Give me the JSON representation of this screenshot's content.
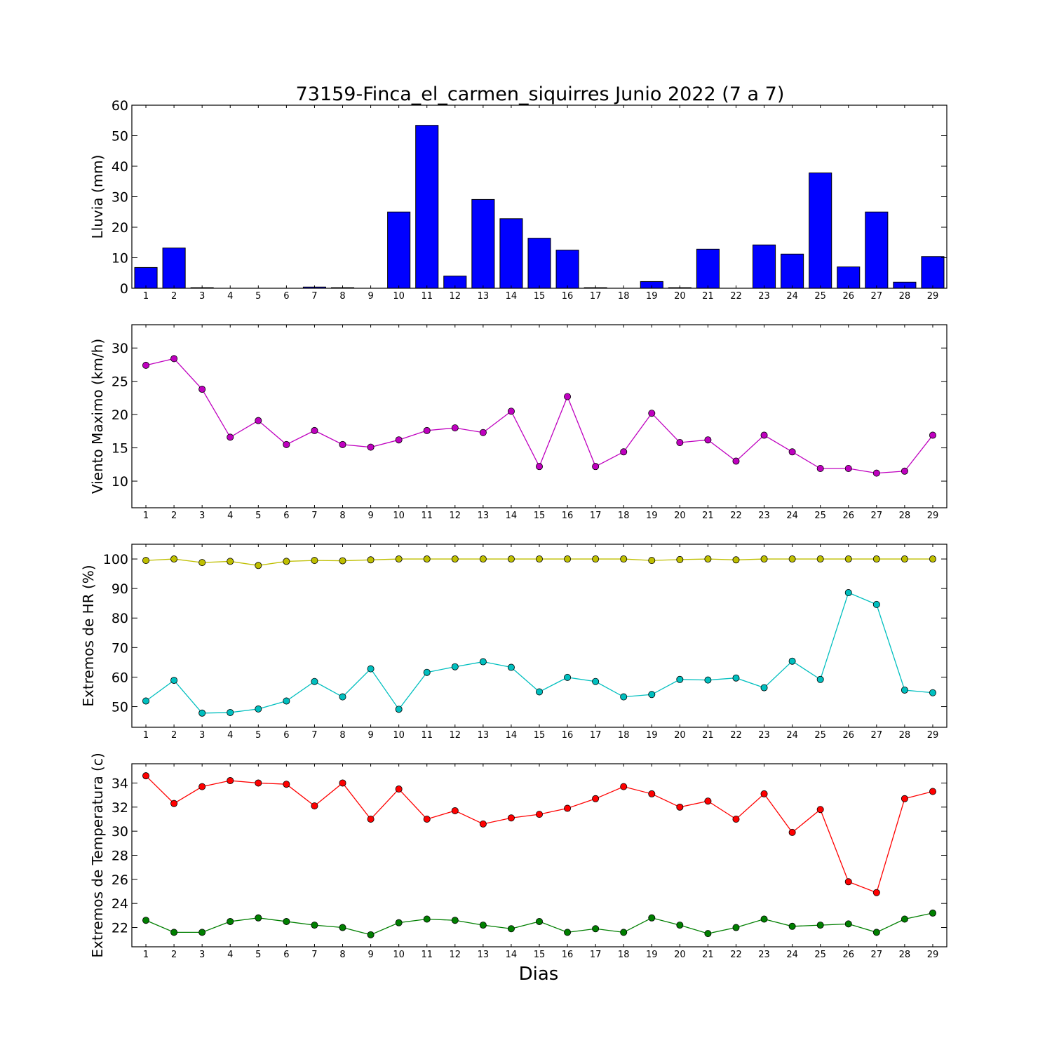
{
  "chart_data": {
    "type": "multi-panel",
    "title": "73159-Finca_el_carmen_siquirres Junio 2022  (7 a 7)",
    "xlabel": "Dias",
    "days": [
      1,
      2,
      3,
      4,
      5,
      6,
      7,
      8,
      9,
      10,
      11,
      12,
      13,
      14,
      15,
      16,
      17,
      18,
      19,
      20,
      21,
      22,
      23,
      24,
      25,
      26,
      27,
      28,
      29
    ],
    "panels": [
      {
        "type": "bar",
        "ylabel": "Lluvia (mm)",
        "ylim": [
          0,
          60
        ],
        "yticks": [
          0,
          10,
          20,
          30,
          40,
          50,
          60
        ],
        "series": [
          {
            "color": "#0000ff",
            "values": [
              6.8,
              13.2,
              0.2,
              0,
              0,
              0,
              0.4,
              0.2,
              0,
              25,
              53.4,
              4,
              29.1,
              22.8,
              16.4,
              12.5,
              0.2,
              0,
              2.2,
              0.2,
              12.8,
              0,
              14.2,
              11.2,
              37.8,
              7,
              25,
              2,
              10.4
            ]
          }
        ]
      },
      {
        "type": "line",
        "ylabel": "Viento Maximo (km/h)",
        "ylim": [
          6,
          33.5
        ],
        "yticks": [
          10,
          15,
          20,
          25,
          30
        ],
        "series": [
          {
            "color": "#bf00bf",
            "values": [
              27.4,
              28.4,
              23.8,
              16.6,
              19.1,
              15.5,
              17.6,
              15.5,
              15.1,
              16.2,
              17.6,
              18,
              17.3,
              20.5,
              12.2,
              22.7,
              12.2,
              14.4,
              20.2,
              15.8,
              16.2,
              13,
              16.9,
              14.4,
              11.9,
              11.9,
              11.2,
              11.5,
              16.9
            ]
          }
        ]
      },
      {
        "type": "line",
        "ylabel": "Extremos de HR (%)",
        "ylim": [
          43,
          105
        ],
        "yticks": [
          50,
          60,
          70,
          80,
          90,
          100
        ],
        "series": [
          {
            "color": "#bfbf00",
            "values": [
              99.5,
              100,
              98.8,
              99.2,
              97.8,
              99.2,
              99.5,
              99.4,
              99.7,
              100,
              100,
              100,
              100,
              100,
              100,
              100,
              100,
              100,
              99.5,
              99.8,
              100,
              99.7,
              100,
              100,
              100,
              100,
              100,
              100,
              100
            ]
          },
          {
            "color": "#00bfbf",
            "values": [
              51.9,
              58.9,
              47.8,
              48,
              49.2,
              51.9,
              58.5,
              53.3,
              62.8,
              49.1,
              61.6,
              63.5,
              65.2,
              63.3,
              55,
              59.9,
              58.5,
              53.3,
              54.1,
              59.2,
              59,
              59.7,
              56.4,
              65.4,
              59.2,
              88.6,
              84.6,
              55.6,
              54.7
            ]
          }
        ]
      },
      {
        "type": "line",
        "ylabel": "Extremos de Temperatura (c)",
        "ylim": [
          20.4,
          35.6
        ],
        "yticks": [
          22,
          24,
          26,
          28,
          30,
          32,
          34
        ],
        "series": [
          {
            "color": "#ff0000",
            "values": [
              34.6,
              32.3,
              33.7,
              34.2,
              34,
              33.9,
              32.1,
              34,
              31,
              33.5,
              31,
              31.7,
              30.6,
              31.1,
              31.4,
              31.9,
              32.7,
              33.7,
              33.1,
              32,
              32.5,
              31,
              33.1,
              29.9,
              31.8,
              25.8,
              24.9,
              32.7,
              33.3
            ]
          },
          {
            "color": "#007f00",
            "values": [
              22.6,
              21.6,
              21.6,
              22.5,
              22.8,
              22.5,
              22.2,
              22,
              21.4,
              22.4,
              22.7,
              22.6,
              22.2,
              21.9,
              22.5,
              21.6,
              21.9,
              21.6,
              22.8,
              22.2,
              21.5,
              22,
              22.7,
              22.1,
              22.2,
              22.3,
              21.6,
              22.7,
              23.2
            ]
          }
        ]
      }
    ]
  }
}
